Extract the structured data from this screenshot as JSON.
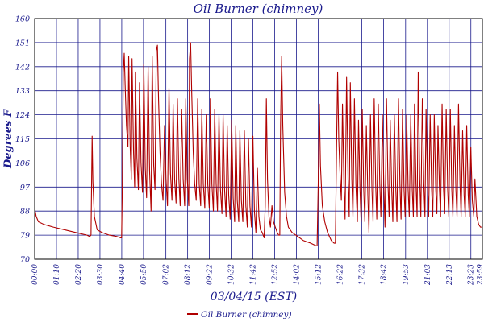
{
  "chart_data": {
    "type": "line",
    "title": "Oil Burner (chimney)",
    "xlabel": "03/04/15 (EST)",
    "ylabel": "Degrees F",
    "ylim": [
      70,
      160
    ],
    "yticks": [
      70,
      79,
      88,
      97,
      106,
      115,
      124,
      133,
      142,
      151,
      160
    ],
    "xtick_labels": [
      "00:00",
      "01:10",
      "02:20",
      "03:30",
      "04:40",
      "05:50",
      "07:02",
      "08:12",
      "09:22",
      "10:32",
      "11:42",
      "12:52",
      "14:02",
      "15:12",
      "16:22",
      "17:32",
      "18:42",
      "19:53",
      "21:03",
      "22:13",
      "23:23",
      "23:59"
    ],
    "grid": true,
    "legend_position": "bottom-center",
    "series": [
      {
        "name": "Oil Burner (chimney)",
        "color": "#b00000",
        "points": [
          [
            0.0,
            89
          ],
          [
            0.08,
            86
          ],
          [
            0.2,
            84
          ],
          [
            0.5,
            83
          ],
          [
            1.0,
            82
          ],
          [
            1.6,
            81
          ],
          [
            2.2,
            80
          ],
          [
            2.8,
            79
          ],
          [
            2.95,
            78.5
          ],
          [
            3.02,
            79
          ],
          [
            3.08,
            116
          ],
          [
            3.12,
            99
          ],
          [
            3.2,
            86
          ],
          [
            3.35,
            81
          ],
          [
            3.6,
            80
          ],
          [
            4.0,
            79
          ],
          [
            4.4,
            78.5
          ],
          [
            4.62,
            78
          ],
          [
            4.66,
            78
          ],
          [
            4.7,
            98
          ],
          [
            4.75,
            140
          ],
          [
            4.8,
            147
          ],
          [
            4.85,
            135
          ],
          [
            4.92,
            120
          ],
          [
            5.0,
            112
          ],
          [
            5.04,
            146
          ],
          [
            5.12,
            112
          ],
          [
            5.18,
            100
          ],
          [
            5.22,
            145
          ],
          [
            5.3,
            110
          ],
          [
            5.36,
            97
          ],
          [
            5.4,
            140
          ],
          [
            5.48,
            108
          ],
          [
            5.56,
            96
          ],
          [
            5.62,
            136
          ],
          [
            5.7,
            106
          ],
          [
            5.78,
            95
          ],
          [
            5.85,
            143
          ],
          [
            5.93,
            104
          ],
          [
            6.0,
            93
          ],
          [
            6.08,
            142
          ],
          [
            6.16,
            103
          ],
          [
            6.24,
            88
          ],
          [
            6.3,
            146
          ],
          [
            6.38,
            105
          ],
          [
            6.45,
            96
          ],
          [
            6.52,
            148
          ],
          [
            6.58,
            150
          ],
          [
            6.64,
            130
          ],
          [
            6.72,
            110
          ],
          [
            6.8,
            98
          ],
          [
            6.88,
            92
          ],
          [
            6.96,
            120
          ],
          [
            7.04,
            100
          ],
          [
            7.12,
            90
          ],
          [
            7.2,
            134
          ],
          [
            7.28,
            102
          ],
          [
            7.36,
            92
          ],
          [
            7.42,
            128
          ],
          [
            7.5,
            100
          ],
          [
            7.58,
            91
          ],
          [
            7.65,
            130
          ],
          [
            7.73,
            100
          ],
          [
            7.8,
            90
          ],
          [
            7.88,
            126
          ],
          [
            7.96,
            100
          ],
          [
            8.04,
            90
          ],
          [
            8.1,
            130
          ],
          [
            8.18,
            100
          ],
          [
            8.26,
            90
          ],
          [
            8.3,
            145
          ],
          [
            8.36,
            151
          ],
          [
            8.42,
            132
          ],
          [
            8.5,
            110
          ],
          [
            8.58,
            98
          ],
          [
            8.66,
            92
          ],
          [
            8.74,
            130
          ],
          [
            8.82,
            98
          ],
          [
            8.9,
            90
          ],
          [
            8.96,
            126
          ],
          [
            9.04,
            98
          ],
          [
            9.12,
            89
          ],
          [
            9.2,
            124
          ],
          [
            9.28,
            98
          ],
          [
            9.36,
            89
          ],
          [
            9.42,
            130
          ],
          [
            9.5,
            98
          ],
          [
            9.58,
            88
          ],
          [
            9.65,
            126
          ],
          [
            9.73,
            98
          ],
          [
            9.8,
            88
          ],
          [
            9.88,
            124
          ],
          [
            9.96,
            96
          ],
          [
            10.04,
            87
          ],
          [
            10.1,
            124
          ],
          [
            10.18,
            96
          ],
          [
            10.26,
            86
          ],
          [
            10.32,
            120
          ],
          [
            10.4,
            94
          ],
          [
            10.48,
            85
          ],
          [
            10.56,
            122
          ],
          [
            10.64,
            93
          ],
          [
            10.72,
            84
          ],
          [
            10.78,
            120
          ],
          [
            10.86,
            92
          ],
          [
            10.94,
            84
          ],
          [
            11.0,
            118
          ],
          [
            11.08,
            92
          ],
          [
            11.16,
            84
          ],
          [
            11.24,
            118
          ],
          [
            11.32,
            90
          ],
          [
            11.4,
            82
          ],
          [
            11.46,
            115
          ],
          [
            11.54,
            90
          ],
          [
            11.62,
            82
          ],
          [
            11.7,
            116
          ],
          [
            11.78,
            88
          ],
          [
            11.86,
            80
          ],
          [
            11.94,
            104
          ],
          [
            12.02,
            86
          ],
          [
            12.1,
            81
          ],
          [
            12.2,
            80
          ],
          [
            12.3,
            78
          ],
          [
            12.36,
            90
          ],
          [
            12.42,
            130
          ],
          [
            12.48,
            100
          ],
          [
            12.56,
            86
          ],
          [
            12.64,
            82
          ],
          [
            12.72,
            90
          ],
          [
            12.8,
            84
          ],
          [
            12.9,
            82
          ],
          [
            13.0,
            80
          ],
          [
            13.08,
            79
          ],
          [
            13.14,
            79
          ],
          [
            13.18,
            120
          ],
          [
            13.24,
            146
          ],
          [
            13.3,
            120
          ],
          [
            13.4,
            95
          ],
          [
            13.5,
            86
          ],
          [
            13.6,
            82
          ],
          [
            13.8,
            80
          ],
          [
            14.0,
            79
          ],
          [
            14.4,
            77
          ],
          [
            14.8,
            76
          ],
          [
            15.1,
            75
          ],
          [
            15.14,
            75
          ],
          [
            15.2,
            98
          ],
          [
            15.26,
            128
          ],
          [
            15.32,
            105
          ],
          [
            15.42,
            90
          ],
          [
            15.55,
            84
          ],
          [
            15.7,
            80
          ],
          [
            15.9,
            77
          ],
          [
            16.05,
            76
          ],
          [
            16.12,
            76
          ],
          [
            16.18,
            110
          ],
          [
            16.24,
            140
          ],
          [
            16.3,
            115
          ],
          [
            16.38,
            100
          ],
          [
            16.44,
            92
          ],
          [
            16.5,
            128
          ],
          [
            16.58,
            98
          ],
          [
            16.64,
            85
          ],
          [
            16.72,
            138
          ],
          [
            16.8,
            100
          ],
          [
            16.86,
            86
          ],
          [
            16.92,
            136
          ],
          [
            17.0,
            100
          ],
          [
            17.06,
            86
          ],
          [
            17.14,
            130
          ],
          [
            17.22,
            98
          ],
          [
            17.3,
            84
          ],
          [
            17.36,
            122
          ],
          [
            17.44,
            96
          ],
          [
            17.5,
            84
          ],
          [
            17.56,
            126
          ],
          [
            17.64,
            96
          ],
          [
            17.7,
            84
          ],
          [
            17.78,
            120
          ],
          [
            17.86,
            94
          ],
          [
            17.92,
            80
          ],
          [
            18.0,
            124
          ],
          [
            18.08,
            96
          ],
          [
            18.14,
            84
          ],
          [
            18.2,
            130
          ],
          [
            18.28,
            98
          ],
          [
            18.34,
            85
          ],
          [
            18.42,
            128
          ],
          [
            18.5,
            98
          ],
          [
            18.56,
            86
          ],
          [
            18.64,
            124
          ],
          [
            18.72,
            96
          ],
          [
            18.78,
            82
          ],
          [
            18.86,
            130
          ],
          [
            18.94,
            98
          ],
          [
            19.0,
            86
          ],
          [
            19.06,
            122
          ],
          [
            19.14,
            96
          ],
          [
            19.2,
            84
          ],
          [
            19.28,
            124
          ],
          [
            19.36,
            96
          ],
          [
            19.42,
            84
          ],
          [
            19.5,
            130
          ],
          [
            19.58,
            98
          ],
          [
            19.64,
            85
          ],
          [
            19.72,
            126
          ],
          [
            19.8,
            96
          ],
          [
            19.86,
            86
          ],
          [
            19.94,
            124
          ],
          [
            20.02,
            96
          ],
          [
            20.08,
            86
          ],
          [
            20.16,
            124
          ],
          [
            20.24,
            96
          ],
          [
            20.3,
            86
          ],
          [
            20.36,
            128
          ],
          [
            20.44,
            98
          ],
          [
            20.5,
            86
          ],
          [
            20.56,
            140
          ],
          [
            20.64,
            100
          ],
          [
            20.7,
            86
          ],
          [
            20.78,
            130
          ],
          [
            20.86,
            98
          ],
          [
            20.92,
            86
          ],
          [
            20.98,
            126
          ],
          [
            21.06,
            98
          ],
          [
            21.12,
            86
          ],
          [
            21.2,
            124
          ],
          [
            21.28,
            96
          ],
          [
            21.34,
            86
          ],
          [
            21.42,
            124
          ],
          [
            21.5,
            96
          ],
          [
            21.56,
            87
          ],
          [
            21.62,
            120
          ],
          [
            21.7,
            96
          ],
          [
            21.76,
            86
          ],
          [
            21.84,
            128
          ],
          [
            21.92,
            96
          ],
          [
            21.98,
            87
          ],
          [
            22.06,
            126
          ],
          [
            22.14,
            96
          ],
          [
            22.2,
            86
          ],
          [
            22.28,
            126
          ],
          [
            22.36,
            96
          ],
          [
            22.42,
            86
          ],
          [
            22.5,
            120
          ],
          [
            22.58,
            96
          ],
          [
            22.64,
            86
          ],
          [
            22.72,
            128
          ],
          [
            22.8,
            98
          ],
          [
            22.86,
            86
          ],
          [
            22.94,
            118
          ],
          [
            23.02,
            94
          ],
          [
            23.08,
            86
          ],
          [
            23.16,
            120
          ],
          [
            23.24,
            94
          ],
          [
            23.3,
            86
          ],
          [
            23.38,
            112
          ],
          [
            23.46,
            92
          ],
          [
            23.54,
            86
          ],
          [
            23.6,
            100
          ],
          [
            23.7,
            86
          ],
          [
            23.8,
            83
          ],
          [
            23.9,
            82
          ],
          [
            23.98,
            82
          ]
        ]
      }
    ]
  }
}
